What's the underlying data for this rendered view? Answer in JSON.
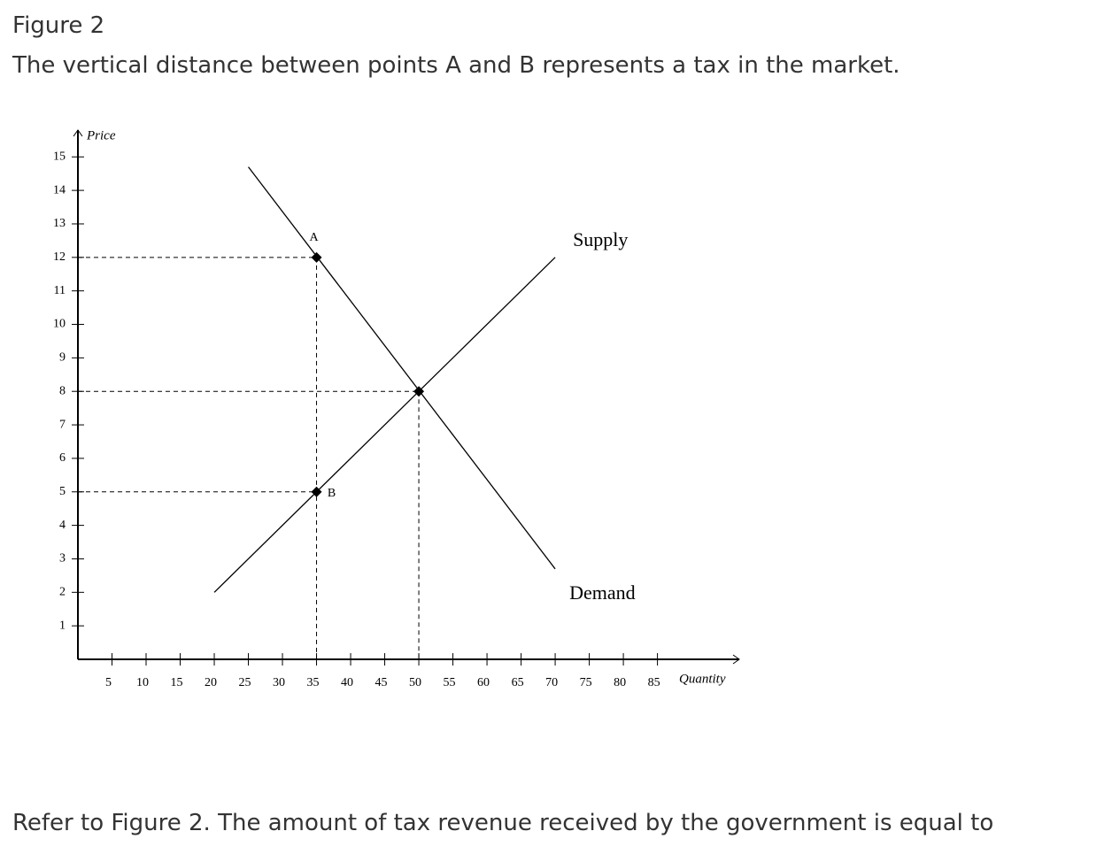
{
  "header": {
    "figure": "Figure 2",
    "caption": "The vertical distance between points A and B represents a tax in the market."
  },
  "chart_data": {
    "type": "line",
    "x_label": "Quantity",
    "y_label": "Price",
    "xlim": [
      0,
      97
    ],
    "ylim": [
      0,
      15.8
    ],
    "xticks": [
      5,
      10,
      15,
      20,
      25,
      30,
      35,
      40,
      45,
      50,
      55,
      60,
      65,
      70,
      75,
      80,
      85
    ],
    "yticks": [
      1,
      2,
      3,
      4,
      5,
      6,
      7,
      8,
      9,
      10,
      11,
      12,
      13,
      14,
      15
    ],
    "series": [
      {
        "name": "Supply",
        "color": "#000000",
        "x": [
          20,
          70
        ],
        "values": [
          2,
          12
        ]
      },
      {
        "name": "Demand",
        "color": "#000000",
        "x": [
          25,
          70
        ],
        "values": [
          14.7,
          2.7
        ]
      }
    ],
    "points": [
      {
        "label": "A",
        "x": 35,
        "y": 12
      },
      {
        "label": "B",
        "x": 35,
        "y": 5
      },
      {
        "x": 50,
        "y": 8
      }
    ]
  },
  "question": "Refer to Figure 2. The amount of tax revenue received by the government is equal to"
}
